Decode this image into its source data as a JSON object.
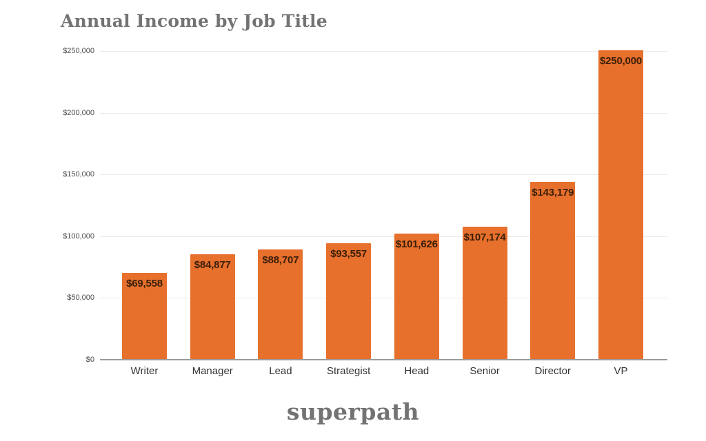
{
  "chart_data": {
    "type": "bar",
    "title": "Annual Income by Job Title",
    "categories": [
      "Writer",
      "Manager",
      "Lead",
      "Strategist",
      "Head",
      "Senior",
      "Director",
      "VP"
    ],
    "values": [
      69558,
      84877,
      88707,
      93557,
      101626,
      107174,
      143179,
      250000
    ],
    "value_labels": [
      "$69,558",
      "$84,877",
      "$88,707",
      "$93,557",
      "$101,626",
      "$107,174",
      "$143,179",
      "$250,000"
    ],
    "xlabel": "",
    "ylabel": "",
    "ylim": [
      0,
      250000
    ],
    "yticks": [
      0,
      50000,
      100000,
      150000,
      200000,
      250000
    ],
    "ytick_labels": [
      "$0",
      "$50,000",
      "$100,000",
      "$150,000",
      "$200,000",
      "$250,000"
    ],
    "grid": true,
    "legend": "none",
    "bar_color": "#E7702D",
    "bar_label_color": "#3B1F07"
  },
  "footer": {
    "logo_text": "superpath"
  },
  "colors": {
    "title_text": "#737373",
    "gridline": "#E9E9E9",
    "axis_line": "#9B9B9B",
    "ytick_text": "#4A4A4A",
    "xtick_text": "#333333",
    "background": "#FFFFFF"
  }
}
